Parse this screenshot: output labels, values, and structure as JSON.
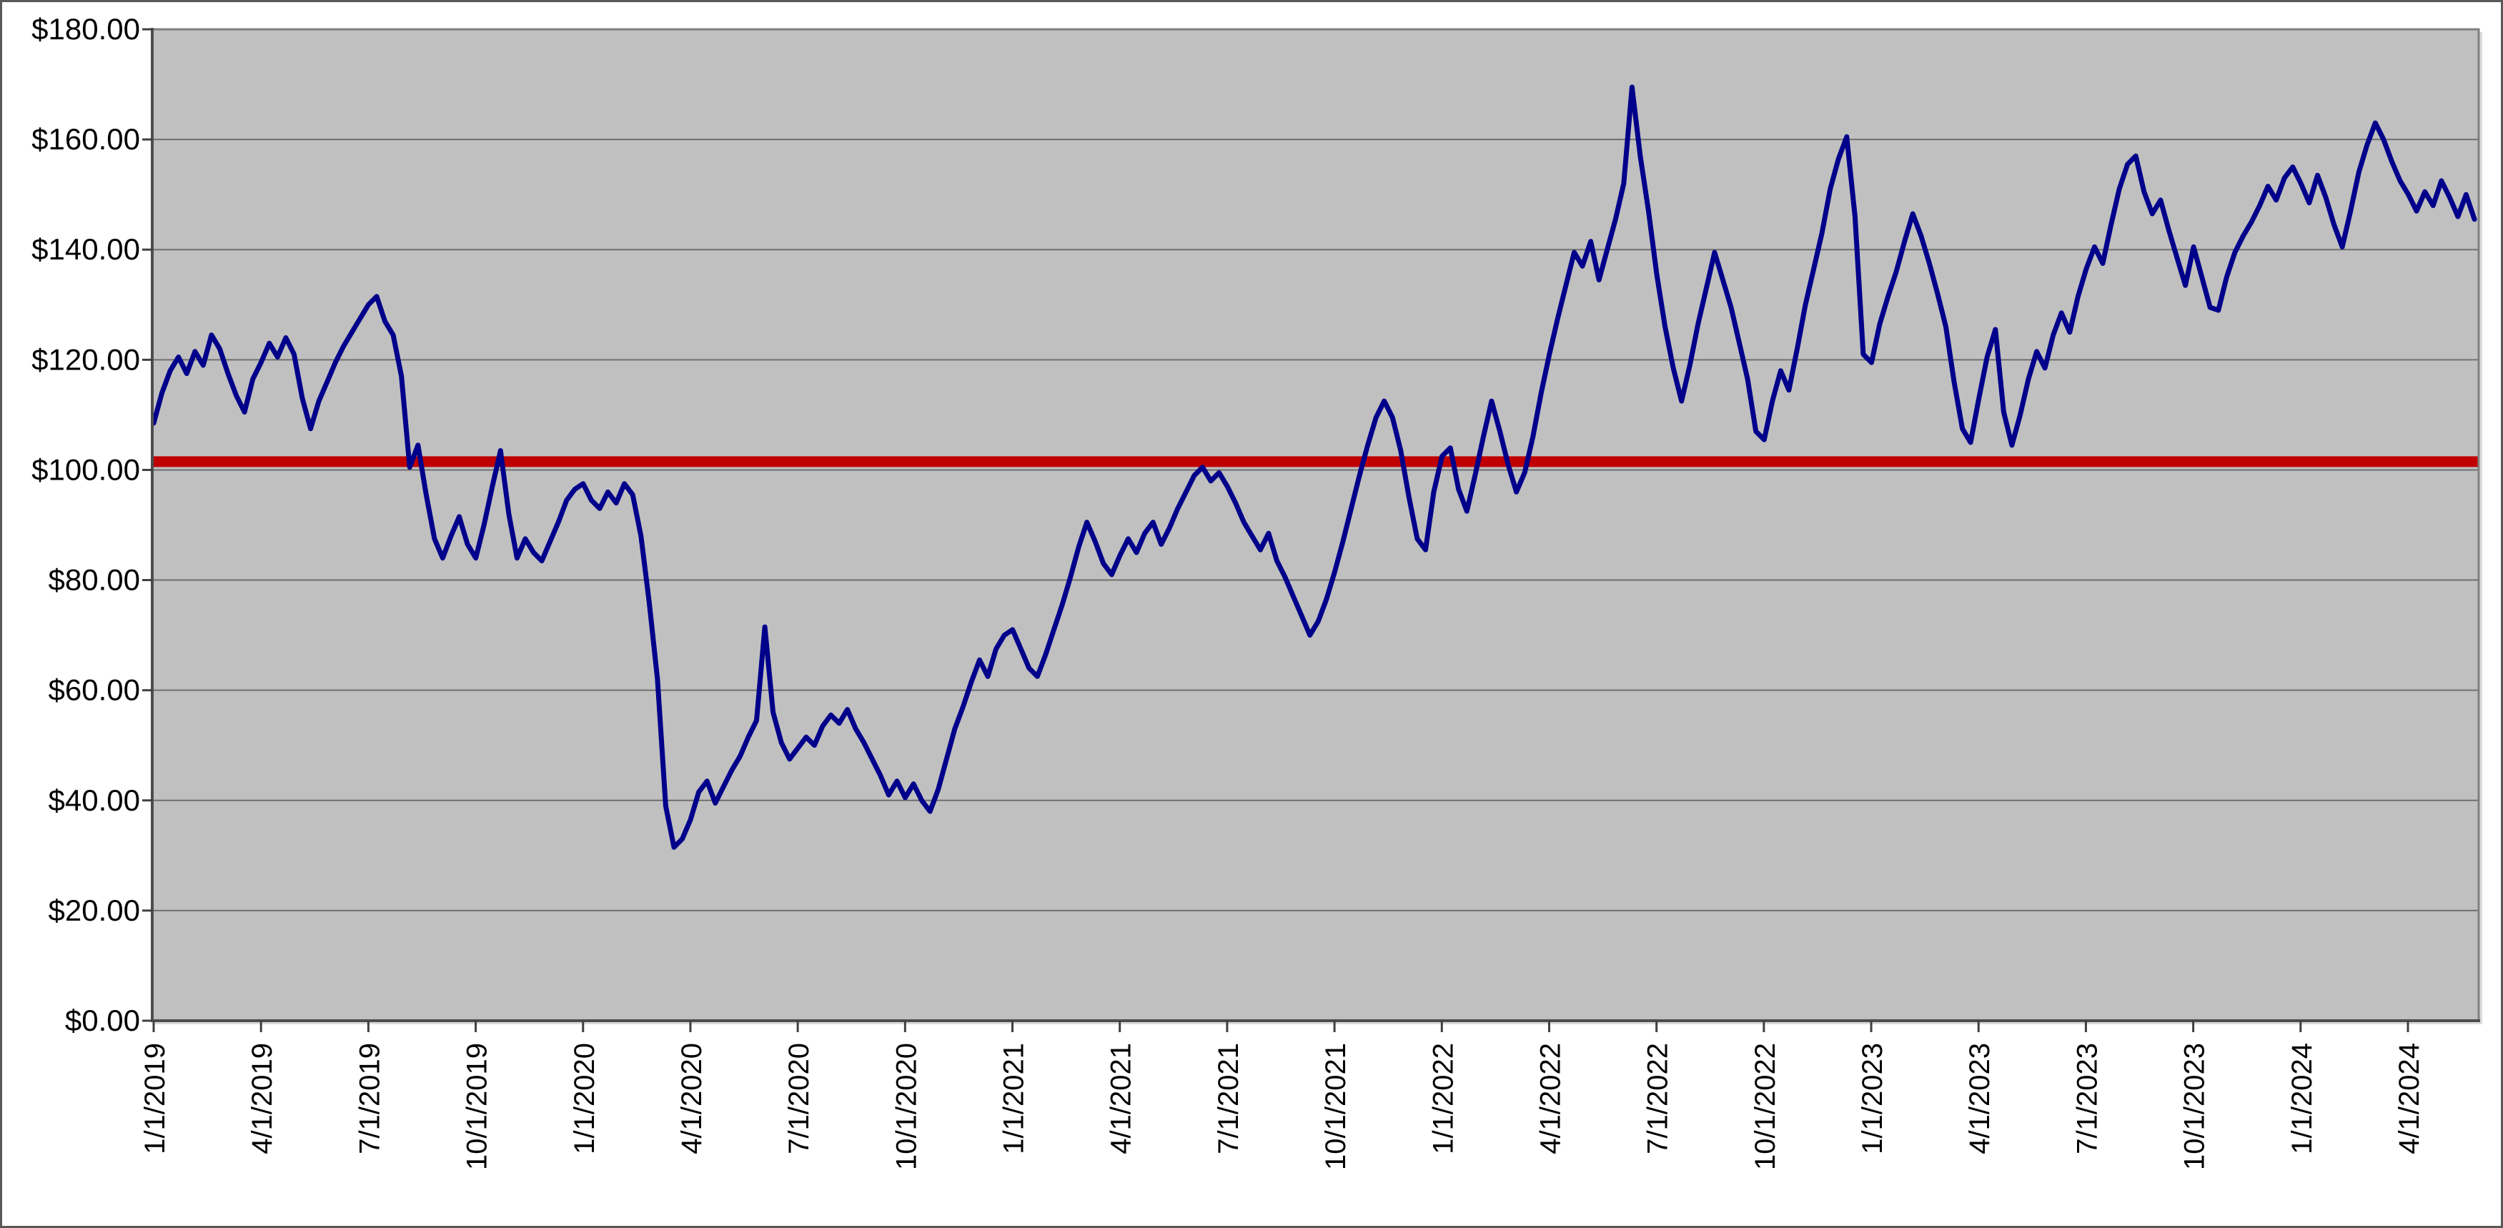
{
  "chart_data": {
    "type": "line",
    "title": "",
    "xlabel": "",
    "ylabel": "",
    "legend": "none",
    "plot_background_color": "#C0C0C0",
    "page_background_color": "#FFFFFF",
    "gridline_color": "#6F6F6F",
    "plot_border_color": "#808080",
    "axis_line_color": "#404040",
    "grid": "horizontal-only",
    "y_axis": {
      "min": 0,
      "max": 180,
      "step": 20,
      "tick_format": "currency",
      "tick_labels": [
        "$0.00",
        "$20.00",
        "$40.00",
        "$60.00",
        "$80.00",
        "$100.00",
        "$120.00",
        "$140.00",
        "$160.00",
        "$180.00"
      ]
    },
    "x_axis": {
      "start_date": "1/1/2019",
      "end_date": "6/2024",
      "tick_interval": "quarterly",
      "label_rotation_degrees": -90,
      "tick_labels": [
        "1/1/2019",
        "4/1/2019",
        "7/1/2019",
        "10/1/2019",
        "1/1/2020",
        "4/1/2020",
        "7/1/2020",
        "10/1/2020",
        "1/1/2021",
        "4/1/2021",
        "7/1/2021",
        "10/1/2021",
        "1/1/2022",
        "4/1/2022",
        "7/1/2022",
        "10/1/2022",
        "1/1/2023",
        "4/1/2023",
        "7/1/2023",
        "10/1/2023",
        "1/1/2024",
        "4/1/2024"
      ]
    },
    "series": [
      {
        "name": "price-history",
        "color": "#00008B",
        "line_width": 7,
        "sampling": "weekly estimates read from pixels, 1/1/2019 through late May 2024",
        "values": [
          108.5,
          114,
          118,
          120.5,
          117.5,
          121.5,
          119,
          124.5,
          122,
          117.5,
          113.5,
          110.5,
          116.5,
          119.5,
          123,
          120.5,
          124,
          121,
          113,
          107.5,
          112.5,
          116,
          119.5,
          122.5,
          125,
          127.5,
          130,
          131.5,
          127,
          124.5,
          117,
          100.5,
          104.5,
          95.5,
          87.5,
          84,
          88,
          91.5,
          86.5,
          84,
          90,
          97,
          103.5,
          92,
          84,
          87.5,
          85,
          83.5,
          87,
          90.5,
          94.5,
          96.5,
          97.5,
          94.5,
          93,
          96,
          94,
          97.5,
          95.5,
          88,
          76,
          62,
          39,
          31.5,
          33,
          36.5,
          41.5,
          43.5,
          39.5,
          42.5,
          45.5,
          48,
          51.5,
          54.5,
          71.5,
          56,
          50.5,
          47.5,
          49.5,
          51.5,
          50,
          53.5,
          55.5,
          54,
          56.5,
          53,
          50.5,
          47.5,
          44.5,
          41,
          43.5,
          40.5,
          43,
          40,
          38,
          42,
          47.5,
          53,
          57,
          61.5,
          65.5,
          62.5,
          67.5,
          70,
          71,
          67.5,
          64,
          62.5,
          66.5,
          71,
          75.5,
          80.5,
          86,
          90.5,
          87,
          83,
          81,
          84.5,
          87.5,
          85,
          88.5,
          90.5,
          86.5,
          89.5,
          93,
          96,
          99,
          100.5,
          98,
          99.5,
          97,
          94,
          90.5,
          88,
          85.5,
          88.5,
          83.5,
          80.5,
          77,
          73.5,
          70,
          72.5,
          76.5,
          81.5,
          87,
          93,
          99,
          104.5,
          109.5,
          112.5,
          109.5,
          103.5,
          95,
          87.5,
          85.5,
          96,
          102.5,
          104,
          96.5,
          92.5,
          99,
          106,
          112.5,
          107,
          101,
          96,
          99.5,
          106,
          114,
          121,
          127.5,
          133.5,
          139.5,
          137,
          141.5,
          134.5,
          140,
          145.5,
          152,
          169.5,
          157,
          147,
          135.5,
          126,
          118.5,
          112.5,
          119,
          126.5,
          133,
          139.5,
          134.5,
          129.5,
          123,
          116.5,
          107,
          105.5,
          112.5,
          118,
          114.5,
          122,
          130,
          136.5,
          143,
          151,
          156.5,
          160.5,
          146,
          121,
          119.5,
          126.5,
          131.5,
          136,
          141.5,
          146.5,
          142.5,
          137.5,
          132,
          126,
          116,
          107.5,
          105,
          113,
          120.5,
          125.5,
          110.5,
          104.5,
          110,
          116.5,
          121.5,
          118.5,
          124.5,
          128.5,
          125,
          131.5,
          136.5,
          140.5,
          137.5,
          144.5,
          151,
          155.5,
          157,
          150.5,
          146.5,
          149,
          143.5,
          138.5,
          133.5,
          140.5,
          135,
          129.5,
          129,
          135,
          139.5,
          142.5,
          145,
          148,
          151.5,
          149,
          153,
          155,
          152,
          148.5,
          153.5,
          149.5,
          144.5,
          140.5,
          147,
          154,
          159,
          163,
          160,
          156,
          152.5,
          150,
          147,
          150.5,
          148,
          152.5,
          149.5,
          146,
          150,
          145.5
        ]
      },
      {
        "name": "reference-level-line",
        "color": "#C00000",
        "line_width": 15,
        "value": 101.5,
        "description": "constant horizontal reference line at about $101.50"
      }
    ]
  }
}
